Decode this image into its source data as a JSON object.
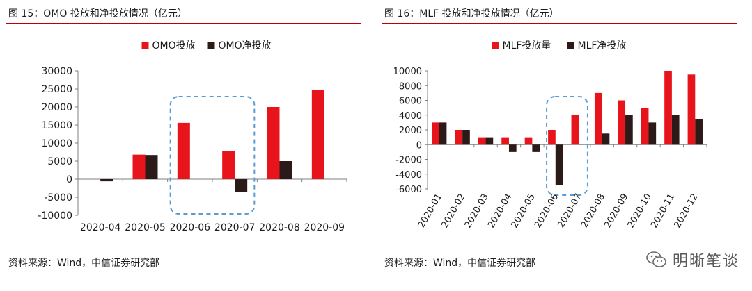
{
  "left": {
    "title": "图 15：OMO 投放和净投放情况（亿元）",
    "source": "资料来源：Wind，中信证券研究部"
  },
  "right": {
    "title": "图 16：MLF 投放和净投放情况（亿元）",
    "source": "资料来源：Wind，中信证券研究部"
  },
  "watermark": {
    "text": "明晰笔谈",
    "icon": "wechat-icon"
  },
  "colors": {
    "red": "#e8141c",
    "dark": "#2b1a17",
    "rule": "#c00000",
    "highlight": "#5b9bd5"
  },
  "chart_data": [
    {
      "type": "bar",
      "categories": [
        "2020-04",
        "2020-05",
        "2020-06",
        "2020-07",
        "2020-08",
        "2020-09"
      ],
      "series": [
        {
          "name": "OMO投放",
          "values": [
            0,
            6800,
            15600,
            7800,
            20000,
            24700
          ]
        },
        {
          "name": "OMO净投放",
          "values": [
            -600,
            6700,
            0,
            -3500,
            5000,
            0
          ]
        }
      ],
      "ylim": [
        -10000,
        30000
      ],
      "yticks": [
        -10000,
        -5000,
        0,
        5000,
        10000,
        15000,
        20000,
        25000,
        30000
      ],
      "legend": "top-center",
      "highlight_categories": [
        "2020-06",
        "2020-07"
      ]
    },
    {
      "type": "bar",
      "categories": [
        "2020-01",
        "2020-02",
        "2020-03",
        "2020-04",
        "2020-05",
        "2020-06",
        "2020-07",
        "2020-08",
        "2020-09",
        "2020-10",
        "2020-11",
        "2020-12"
      ],
      "series": [
        {
          "name": "MLF投放量",
          "values": [
            3000,
            2000,
            1000,
            1000,
            1000,
            2000,
            4000,
            7000,
            6000,
            5000,
            10000,
            9500
          ]
        },
        {
          "name": "MLF净投放",
          "values": [
            3000,
            2000,
            1000,
            -1000,
            -1000,
            -5500,
            0,
            1500,
            4000,
            3000,
            4000,
            3500
          ]
        }
      ],
      "ylim": [
        -6000,
        10000
      ],
      "yticks": [
        -6000,
        -4000,
        -2000,
        0,
        2000,
        4000,
        6000,
        8000,
        10000
      ],
      "legend": "top-center",
      "highlight_categories": [
        "2020-06",
        "2020-07"
      ]
    }
  ]
}
